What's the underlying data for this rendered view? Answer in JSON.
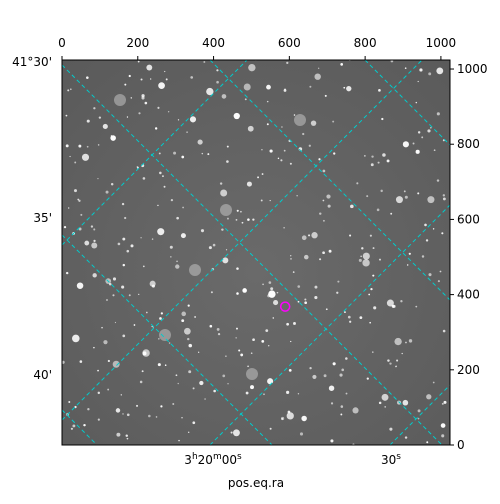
{
  "chart_data": {
    "type": "image",
    "xlabel": "pos.eq.ra",
    "xlim": [
      0,
      1024
    ],
    "ylim": [
      0,
      1024
    ],
    "xticks": [
      0,
      200,
      400,
      600,
      800,
      1000
    ],
    "yticks": [
      0,
      200,
      400,
      600,
      800,
      1000
    ],
    "world_x_labels": [
      "3h20m00s",
      "30s"
    ],
    "world_y_labels": [
      "41°30'",
      "35'",
      "40'"
    ],
    "marker": {
      "x": 589,
      "y": 368,
      "color": "#ff00ff"
    },
    "grid_color": "#00cccc"
  }
}
